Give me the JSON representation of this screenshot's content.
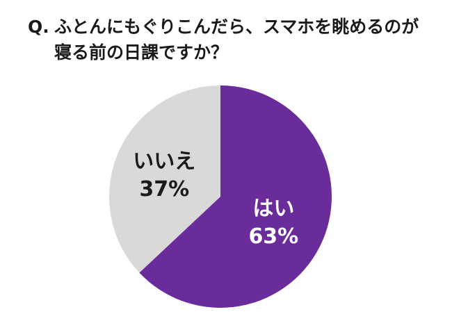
{
  "title": {
    "prefix": "Q.",
    "line1": "ふとんにもぐりこんだら、スマホを眺めるのが",
    "line2": "寝る前の日課ですか？"
  },
  "chart_data": {
    "type": "pie",
    "title": "Q. ふとんにもぐりこんだら、スマホを眺めるのが寝る前の日課ですか？",
    "slices": [
      {
        "label": "はい",
        "value": 63,
        "value_label": "63%",
        "color": "#6b2c9b",
        "text_color": "#ffffff"
      },
      {
        "label": "いいえ",
        "value": 37,
        "value_label": "37%",
        "color": "#d9d9d9",
        "text_color": "#1a1a1a"
      }
    ],
    "start": "12 o'clock",
    "direction": "clockwise",
    "legend": "none"
  }
}
